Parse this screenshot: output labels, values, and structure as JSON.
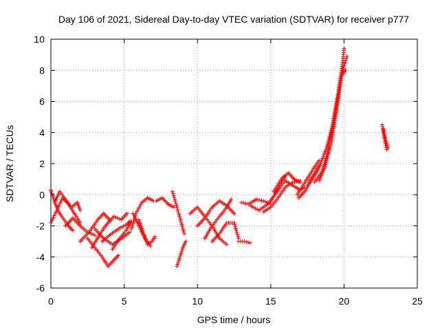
{
  "chart_data": {
    "type": "scatter",
    "title": "Day 106 of 2021, Sidereal Day-to-day VTEC variation (SDTVAR) for receiver p777",
    "xlabel": "GPS time / hours",
    "ylabel": "SDTVAR / TECUs",
    "xlim": [
      0,
      25
    ],
    "ylim": [
      -6,
      10
    ],
    "xticks": [
      0,
      5,
      10,
      15,
      20,
      25
    ],
    "yticks": [
      -6,
      -4,
      -2,
      0,
      2,
      4,
      6,
      8,
      10
    ],
    "grid": true,
    "marker": "+",
    "series": [
      {
        "color": "#ff0000",
        "tracks": [
          [
            [
              0.0,
              0.3
            ],
            [
              0.3,
              -0.6
            ],
            [
              0.6,
              -1.2
            ],
            [
              0.9,
              -1.6
            ],
            [
              1.2,
              -2.0
            ],
            [
              1.5,
              -2.3
            ]
          ],
          [
            [
              0.0,
              -1.8
            ],
            [
              0.4,
              -1.0
            ],
            [
              0.8,
              -0.2
            ],
            [
              1.2,
              -0.6
            ],
            [
              1.6,
              -1.2
            ],
            [
              2.0,
              -1.8
            ]
          ],
          [
            [
              0.3,
              -0.4
            ],
            [
              0.6,
              0.2
            ],
            [
              1.0,
              -0.3
            ],
            [
              1.4,
              -0.8
            ],
            [
              1.8,
              -0.5
            ],
            [
              2.0,
              -1.0
            ]
          ],
          [
            [
              1.0,
              -2.0
            ],
            [
              1.5,
              -1.5
            ],
            [
              2.0,
              -2.0
            ],
            [
              2.5,
              -2.4
            ],
            [
              3.0,
              -2.6
            ]
          ],
          [
            [
              2.5,
              -2.8
            ],
            [
              3.0,
              -3.4
            ],
            [
              3.5,
              -4.0
            ],
            [
              3.9,
              -4.6
            ],
            [
              4.3,
              -4.2
            ],
            [
              4.6,
              -3.9
            ]
          ],
          [
            [
              2.0,
              -3.0
            ],
            [
              2.6,
              -2.4
            ],
            [
              3.2,
              -1.6
            ],
            [
              3.6,
              -1.2
            ],
            [
              4.0,
              -1.6
            ]
          ],
          [
            [
              2.8,
              -3.4
            ],
            [
              3.3,
              -2.6
            ],
            [
              3.8,
              -1.9
            ],
            [
              4.3,
              -1.4
            ],
            [
              4.8,
              -1.6
            ],
            [
              5.2,
              -1.2
            ]
          ],
          [
            [
              3.5,
              -3.0
            ],
            [
              4.0,
              -2.6
            ],
            [
              4.6,
              -2.2
            ],
            [
              5.2,
              -1.9
            ],
            [
              5.4,
              -1.7
            ]
          ],
          [
            [
              3.0,
              -2.2
            ],
            [
              3.6,
              -2.8
            ],
            [
              4.2,
              -3.2
            ],
            [
              4.8,
              -2.8
            ],
            [
              5.4,
              -2.4
            ]
          ],
          [
            [
              4.2,
              -3.5
            ],
            [
              4.7,
              -2.8
            ],
            [
              5.2,
              -2.2
            ],
            [
              5.5,
              -1.7
            ]
          ],
          [
            [
              5.5,
              -2.2
            ],
            [
              5.8,
              -1.2
            ],
            [
              6.2,
              -0.5
            ],
            [
              6.6,
              -0.2
            ],
            [
              7.0,
              -0.4
            ]
          ],
          [
            [
              5.6,
              -1.2
            ],
            [
              6.0,
              -2.0
            ],
            [
              6.4,
              -2.8
            ],
            [
              6.8,
              -3.3
            ]
          ],
          [
            [
              6.0,
              -1.6
            ],
            [
              6.3,
              -2.4
            ],
            [
              6.6,
              -3.2
            ],
            [
              6.9,
              -3.0
            ],
            [
              7.1,
              -2.7
            ]
          ],
          [
            [
              7.2,
              -0.4
            ],
            [
              7.6,
              -0.2
            ],
            [
              8.0,
              -0.6
            ],
            [
              8.4,
              -0.8
            ]
          ],
          [
            [
              8.3,
              0.2
            ],
            [
              8.6,
              -0.8
            ],
            [
              8.9,
              -1.8
            ],
            [
              9.1,
              -2.5
            ]
          ],
          [
            [
              8.6,
              -4.6
            ],
            [
              8.8,
              -4.0
            ],
            [
              9.0,
              -3.4
            ],
            [
              9.2,
              -3.0
            ]
          ],
          [
            [
              9.5,
              -1.2
            ],
            [
              10.0,
              -0.8
            ],
            [
              10.5,
              -1.4
            ],
            [
              11.0,
              -2.0
            ],
            [
              11.5,
              -2.8
            ],
            [
              12.0,
              -3.2
            ]
          ],
          [
            [
              10.0,
              -2.0
            ],
            [
              10.5,
              -1.5
            ],
            [
              11.0,
              -0.8
            ],
            [
              11.5,
              -0.4
            ],
            [
              12.0,
              -0.7
            ],
            [
              12.5,
              -1.2
            ]
          ],
          [
            [
              10.5,
              -2.8
            ],
            [
              11.0,
              -2.0
            ],
            [
              11.5,
              -1.4
            ],
            [
              12.0,
              -0.8
            ],
            [
              12.3,
              -0.3
            ]
          ],
          [
            [
              11.0,
              -3.0
            ],
            [
              11.5,
              -2.5
            ],
            [
              12.0,
              -1.8
            ],
            [
              12.5,
              -1.8
            ],
            [
              12.8,
              -2.8
            ]
          ],
          [
            [
              12.8,
              -3.0
            ],
            [
              13.2,
              -3.0
            ],
            [
              13.6,
              -3.1
            ]
          ],
          [
            [
              13.0,
              -0.5
            ],
            [
              13.5,
              -0.6
            ],
            [
              14.0,
              -0.3
            ],
            [
              14.5,
              -0.4
            ],
            [
              15.0,
              -0.6
            ]
          ],
          [
            [
              13.6,
              -0.7
            ],
            [
              14.2,
              -1.0
            ],
            [
              14.8,
              -0.6
            ],
            [
              15.2,
              -0.1
            ],
            [
              15.6,
              0.6
            ],
            [
              16.0,
              1.2
            ]
          ],
          [
            [
              14.5,
              -1.1
            ],
            [
              15.0,
              -0.8
            ],
            [
              15.5,
              -0.2
            ],
            [
              16.0,
              0.5
            ],
            [
              16.5,
              0.8
            ],
            [
              17.0,
              0.9
            ]
          ],
          [
            [
              15.0,
              -0.4
            ],
            [
              15.5,
              0.3
            ],
            [
              16.0,
              0.9
            ],
            [
              16.5,
              0.6
            ],
            [
              17.0,
              0.3
            ],
            [
              17.3,
              0.5
            ]
          ],
          [
            [
              15.2,
              0.2
            ],
            [
              15.8,
              1.1
            ],
            [
              16.2,
              1.4
            ],
            [
              16.6,
              1.0
            ],
            [
              17.0,
              0.8
            ]
          ],
          [
            [
              16.8,
              0.0
            ],
            [
              17.2,
              0.6
            ],
            [
              17.6,
              1.2
            ],
            [
              18.0,
              1.8
            ],
            [
              18.3,
              2.2
            ]
          ],
          [
            [
              16.9,
              -0.2
            ],
            [
              17.3,
              0.2
            ],
            [
              17.7,
              0.8
            ],
            [
              18.1,
              1.4
            ],
            [
              18.4,
              2.0
            ]
          ],
          [
            [
              17.5,
              0.6
            ],
            [
              18.0,
              1.4
            ],
            [
              18.4,
              2.0
            ],
            [
              18.8,
              3.0
            ],
            [
              19.2,
              4.4
            ],
            [
              19.6,
              6.5
            ],
            [
              19.9,
              8.5
            ],
            [
              20.0,
              9.4
            ]
          ],
          [
            [
              18.0,
              0.8
            ],
            [
              18.5,
              1.5
            ],
            [
              18.9,
              2.8
            ],
            [
              19.3,
              4.8
            ],
            [
              19.7,
              7.0
            ],
            [
              20.0,
              8.3
            ],
            [
              20.2,
              8.9
            ]
          ],
          [
            [
              18.3,
              0.9
            ],
            [
              18.7,
              1.8
            ],
            [
              19.1,
              3.2
            ],
            [
              19.5,
              5.4
            ],
            [
              19.8,
              7.6
            ],
            [
              20.1,
              8.0
            ]
          ],
          [
            [
              22.6,
              4.5
            ],
            [
              22.7,
              3.9
            ],
            [
              22.8,
              3.4
            ],
            [
              22.9,
              2.9
            ]
          ],
          [
            [
              22.7,
              4.2
            ],
            [
              22.8,
              3.7
            ],
            [
              22.9,
              3.3
            ],
            [
              23.0,
              3.0
            ]
          ]
        ]
      }
    ]
  }
}
